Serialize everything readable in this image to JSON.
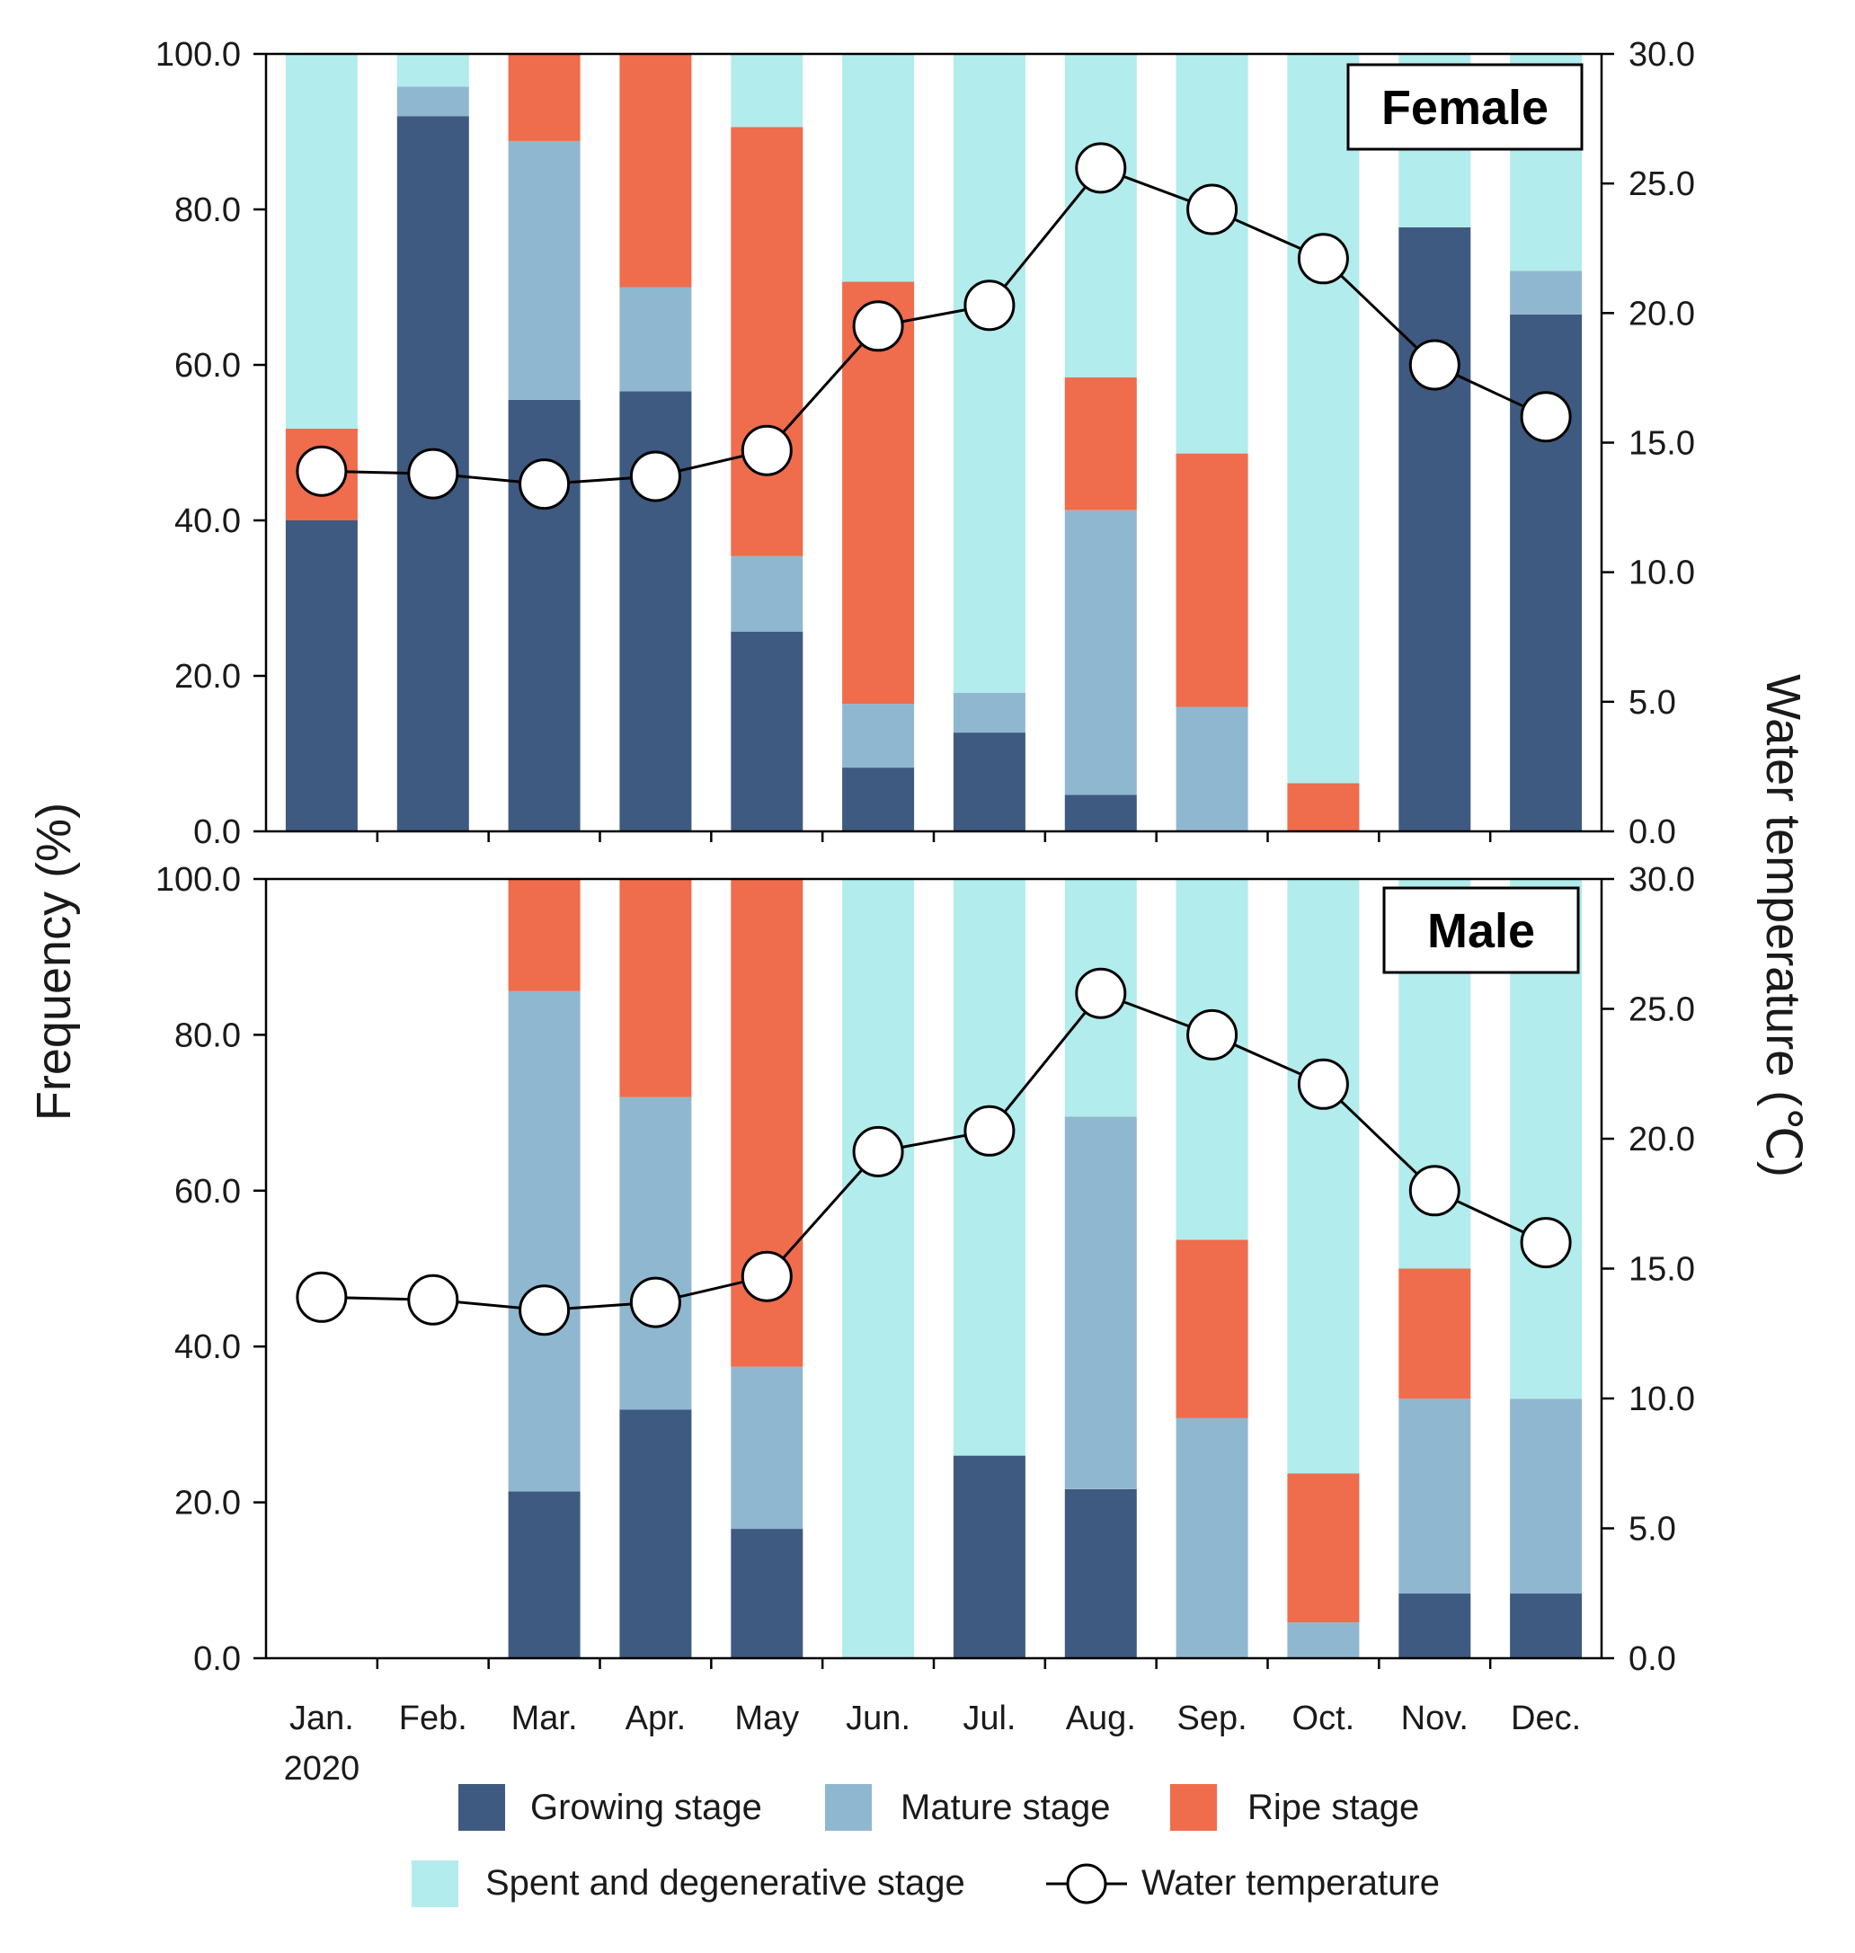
{
  "chart_data": {
    "type": "bar",
    "subtype": "stacked-bar-with-line",
    "categories": [
      "Jan.",
      "Feb.",
      "Mar.",
      "Apr.",
      "May",
      "Jun.",
      "Jul.",
      "Aug.",
      "Sep.",
      "Oct.",
      "Nov.",
      "Dec."
    ],
    "year_label": "2020",
    "ylabel_left": "Frequency (%)",
    "ylabel_right": "Water temperature (℃)",
    "ylim_left": [
      0,
      100
    ],
    "ylim_right": [
      0,
      30
    ],
    "left_ticks": [
      "0.0",
      "20.0",
      "40.0",
      "60.0",
      "80.0",
      "100.0"
    ],
    "right_ticks": [
      "0.0",
      "5.0",
      "10.0",
      "15.0",
      "20.0",
      "25.0",
      "30.0"
    ],
    "water_temperature": [
      13.9,
      13.8,
      13.4,
      13.7,
      14.7,
      19.5,
      20.3,
      25.6,
      24.0,
      22.1,
      18.0,
      16.0
    ],
    "panels": [
      {
        "label": "Female",
        "series": [
          {
            "name": "Growing stage",
            "values": [
              40.0,
              92.0,
              55.5,
              56.6,
              25.7,
              8.2,
              12.7,
              4.7,
              0,
              0,
              77.7,
              66.5
            ]
          },
          {
            "name": "Mature stage",
            "values": [
              0,
              3.8,
              33.3,
              13.4,
              9.7,
              8.2,
              5.1,
              36.6,
              16.0,
              0,
              0,
              5.6
            ]
          },
          {
            "name": "Ripe stage",
            "values": [
              11.8,
              0,
              11.2,
              30.0,
              55.2,
              54.3,
              0,
              17.1,
              32.6,
              6.2,
              0,
              0
            ]
          },
          {
            "name": "Spent and degenerative stage",
            "values": [
              48.2,
              4.2,
              0,
              0,
              9.4,
              29.3,
              82.2,
              41.6,
              51.4,
              93.8,
              22.3,
              27.9
            ]
          }
        ]
      },
      {
        "label": "Male",
        "series": [
          {
            "name": "Growing stage",
            "values": [
              0,
              0,
              21.4,
              31.9,
              16.6,
              0,
              26.0,
              21.7,
              0,
              0,
              8.3,
              8.3
            ]
          },
          {
            "name": "Mature stage",
            "values": [
              0,
              0,
              64.2,
              40.1,
              20.8,
              0,
              0,
              47.8,
              30.8,
              4.6,
              25.0,
              25.0
            ]
          },
          {
            "name": "Ripe stage",
            "values": [
              0,
              0,
              14.4,
              28.0,
              62.6,
              0,
              0,
              0,
              22.9,
              19.1,
              16.7,
              0
            ]
          },
          {
            "name": "Spent and degenerative stage",
            "values": [
              0,
              0,
              0,
              0,
              0,
              100.0,
              74.0,
              30.5,
              46.3,
              76.3,
              50.0,
              66.7
            ]
          }
        ]
      }
    ],
    "legend": [
      {
        "name": "Growing stage",
        "color": "#3f5a80"
      },
      {
        "name": "Mature stage",
        "color": "#8fb8d0"
      },
      {
        "name": "Ripe stage",
        "color": "#ef6c4c"
      },
      {
        "name": "Spent and degenerative stage",
        "color": "#b2ecec"
      },
      {
        "name": "Water temperature",
        "color": "#000000"
      }
    ]
  }
}
